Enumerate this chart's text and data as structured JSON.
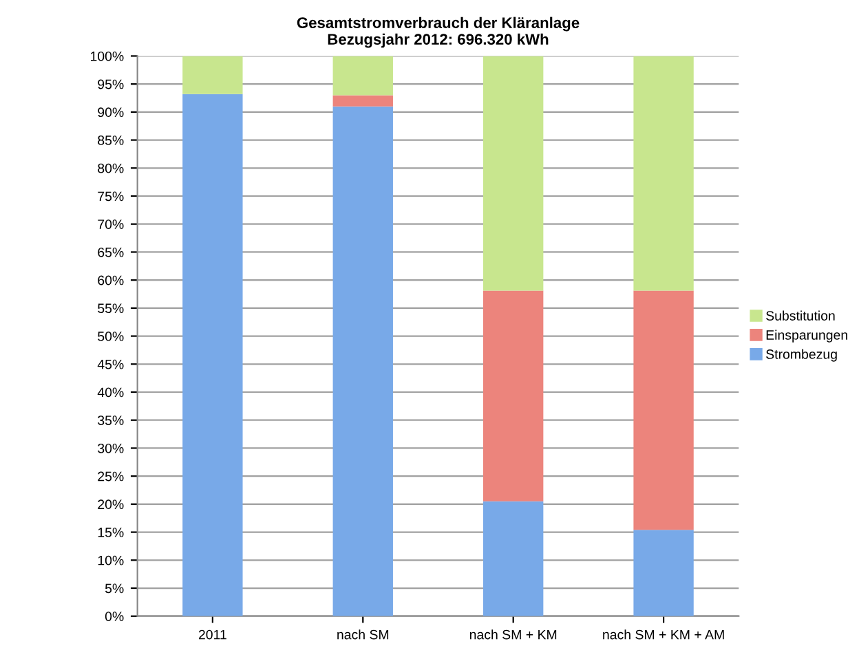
{
  "chart_data": {
    "type": "bar",
    "stacked": true,
    "title": "Gesamtstromverbrauch der Kläranlage\nBezugsjahr 2012: 696.320 kWh",
    "categories": [
      "2011",
      "nach SM",
      "nach SM + KM",
      "nach SM + KM + AM"
    ],
    "series": [
      {
        "name": "Strombezug",
        "color": "#78a9e8",
        "values": [
          93.2,
          91.0,
          20.5,
          15.4
        ]
      },
      {
        "name": "Einsparungen",
        "color": "#ec847c",
        "values": [
          null,
          2.0,
          37.6,
          42.7
        ]
      },
      {
        "name": "Substitution",
        "color": "#c8e68e",
        "values": [
          6.8,
          7.0,
          41.9,
          41.9
        ]
      }
    ],
    "ylim": [
      0,
      100
    ],
    "yticks": [
      {
        "value": 0,
        "label": "0%"
      },
      {
        "value": 5,
        "label": "5%"
      },
      {
        "value": 10,
        "label": "10%"
      },
      {
        "value": 15,
        "label": "15%"
      },
      {
        "value": 20,
        "label": "20%"
      },
      {
        "value": 25,
        "label": "25%"
      },
      {
        "value": 30,
        "label": "30%"
      },
      {
        "value": 35,
        "label": "35%"
      },
      {
        "value": 40,
        "label": "40%"
      },
      {
        "value": 45,
        "label": "45%"
      },
      {
        "value": 50,
        "label": "50%"
      },
      {
        "value": 55,
        "label": "55%"
      },
      {
        "value": 60,
        "label": "60%"
      },
      {
        "value": 65,
        "label": "65%"
      },
      {
        "value": 70,
        "label": "70%"
      },
      {
        "value": 75,
        "label": "75%"
      },
      {
        "value": 80,
        "label": "80%"
      },
      {
        "value": 85,
        "label": "85%"
      },
      {
        "value": 90,
        "label": "90%"
      },
      {
        "value": 95,
        "label": "95%"
      },
      {
        "value": 100,
        "label": "100%"
      }
    ],
    "grid": "y",
    "legend": "right"
  }
}
